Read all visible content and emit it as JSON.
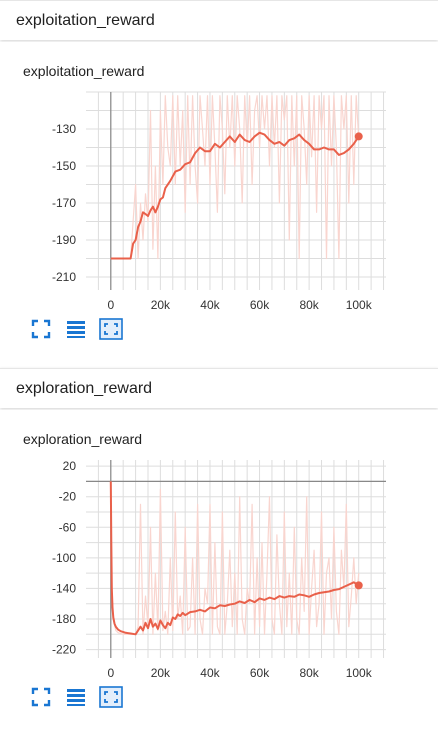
{
  "sections": [
    {
      "header": "exploitation_reward",
      "card_title": "exploitation_reward",
      "toolbar": {
        "fit_icon": "fit-domain-icon",
        "list_icon": "data-list-icon",
        "zoom_icon": "fit-screen-icon"
      }
    },
    {
      "header": "exploration_reward",
      "card_title": "exploration_reward",
      "toolbar": {
        "fit_icon": "fit-domain-icon",
        "list_icon": "data-list-icon",
        "zoom_icon": "fit-screen-icon"
      }
    }
  ],
  "colors": {
    "line": "#e9604a",
    "raw": "#f9d5cf",
    "grid": "#dddddd",
    "icon": "#1976d2"
  },
  "chart_data": [
    {
      "type": "line",
      "title": "exploitation_reward",
      "xlim": [
        -10000,
        111000
      ],
      "ylim": [
        -217,
        -110
      ],
      "x_ticks": [
        0,
        20000,
        40000,
        60000,
        80000,
        100000
      ],
      "x_tick_labels": [
        "0",
        "20k",
        "40k",
        "60k",
        "80k",
        "100k"
      ],
      "y_ticks": [
        -130,
        -150,
        -170,
        -190,
        -210
      ],
      "y_tick_labels": [
        "-130",
        "-150",
        "-170",
        "-190",
        "-210"
      ],
      "grid": true,
      "series": [
        {
          "role": "raw",
          "x": [
            0,
            5000,
            8000,
            9000,
            10000,
            11000,
            12000,
            13000,
            14000,
            15000,
            16000,
            17000,
            18000,
            19000,
            20000,
            21000,
            22000,
            23000,
            24000,
            25000,
            26000,
            27000,
            28000,
            29000,
            30000,
            31000,
            32000,
            33000,
            34000,
            35000,
            36000,
            37000,
            38000,
            39000,
            40000,
            41000,
            42000,
            43000,
            44000,
            45000,
            46000,
            47000,
            48000,
            49000,
            50000,
            51000,
            52000,
            53000,
            54000,
            55000,
            56000,
            57000,
            58000,
            59000,
            60000,
            61000,
            62000,
            63000,
            64000,
            65000,
            66000,
            67000,
            68000,
            69000,
            70000,
            71000,
            72000,
            73000,
            74000,
            75000,
            76000,
            77000,
            78000,
            79000,
            80000,
            81000,
            82000,
            83000,
            84000,
            85000,
            86000,
            87000,
            88000,
            89000,
            90000,
            91000,
            92000,
            93000,
            94000,
            95000,
            96000,
            97000,
            98000,
            99000,
            100000
          ],
          "y": [
            -200,
            -200,
            -200,
            -180,
            -160,
            -200,
            -170,
            -190,
            -165,
            -180,
            -120,
            -195,
            -150,
            -200,
            -120,
            -160,
            -112,
            -140,
            -150,
            -112,
            -160,
            -112,
            -150,
            -120,
            -175,
            -112,
            -160,
            -112,
            -150,
            -170,
            -112,
            -130,
            -150,
            -112,
            -160,
            -112,
            -140,
            -175,
            -112,
            -130,
            -165,
            -112,
            -140,
            -112,
            -150,
            -112,
            -130,
            -170,
            -112,
            -140,
            -112,
            -160,
            -120,
            -112,
            -140,
            -112,
            -130,
            -112,
            -150,
            -112,
            -140,
            -112,
            -170,
            -112,
            -125,
            -112,
            -190,
            -112,
            -150,
            -112,
            -200,
            -112,
            -130,
            -160,
            -112,
            -145,
            -112,
            -175,
            -112,
            -130,
            -112,
            -200,
            -112,
            -150,
            -112,
            -140,
            -200,
            -112,
            -130,
            -112,
            -170,
            -112,
            -160,
            -112,
            -135
          ]
        },
        {
          "role": "smoothed",
          "x": [
            0,
            7000,
            8000,
            9000,
            10000,
            11000,
            12000,
            13000,
            14000,
            15000,
            16000,
            17000,
            18000,
            19000,
            20000,
            21000,
            22000,
            24000,
            26000,
            28000,
            30000,
            32000,
            34000,
            36000,
            38000,
            40000,
            42000,
            44000,
            46000,
            48000,
            50000,
            52000,
            54000,
            56000,
            58000,
            60000,
            62000,
            64000,
            66000,
            68000,
            70000,
            72000,
            74000,
            76000,
            78000,
            80000,
            82000,
            84000,
            86000,
            88000,
            90000,
            92000,
            94000,
            96000,
            98000,
            100000
          ],
          "y": [
            -200,
            -200,
            -200,
            -192,
            -190,
            -183,
            -180,
            -175,
            -176,
            -177,
            -174,
            -172,
            -175,
            -172,
            -168,
            -167,
            -162,
            -158,
            -153,
            -152,
            -149,
            -148,
            -143,
            -140,
            -142,
            -142,
            -138,
            -140,
            -137,
            -134,
            -137,
            -133,
            -136,
            -137,
            -134,
            -132,
            -133,
            -136,
            -138,
            -137,
            -139,
            -136,
            -135,
            -133,
            -136,
            -138,
            -141,
            -141,
            -140,
            -141,
            -141,
            -144,
            -143,
            -141,
            -138,
            -134
          ]
        }
      ]
    },
    {
      "type": "line",
      "title": "exploration_reward",
      "xlim": [
        -10000,
        111000
      ],
      "ylim": [
        -231,
        28
      ],
      "x_ticks": [
        0,
        20000,
        40000,
        60000,
        80000,
        100000
      ],
      "x_tick_labels": [
        "0",
        "20k",
        "40k",
        "60k",
        "80k",
        "100k"
      ],
      "y_ticks": [
        20,
        -20,
        -60,
        -100,
        -140,
        -180,
        -220
      ],
      "y_tick_labels": [
        "20",
        "-20",
        "-60",
        "-100",
        "-140",
        "-180",
        "-220"
      ],
      "grid": true,
      "series": [
        {
          "role": "raw",
          "x": [
            0,
            500,
            1000,
            2000,
            3000,
            5000,
            8000,
            10000,
            11000,
            12000,
            13000,
            14000,
            15000,
            16000,
            17000,
            18000,
            19000,
            20000,
            21000,
            22000,
            23000,
            24000,
            25000,
            26000,
            27000,
            28000,
            29000,
            30000,
            31000,
            32000,
            33000,
            34000,
            35000,
            36000,
            37000,
            38000,
            39000,
            40000,
            41000,
            42000,
            43000,
            44000,
            45000,
            46000,
            47000,
            48000,
            49000,
            50000,
            51000,
            52000,
            53000,
            54000,
            55000,
            56000,
            57000,
            58000,
            59000,
            60000,
            61000,
            62000,
            63000,
            64000,
            65000,
            66000,
            67000,
            68000,
            69000,
            70000,
            71000,
            72000,
            73000,
            74000,
            75000,
            76000,
            77000,
            78000,
            79000,
            80000,
            81000,
            82000,
            83000,
            84000,
            85000,
            86000,
            87000,
            88000,
            89000,
            90000,
            91000,
            92000,
            93000,
            94000,
            95000,
            96000,
            97000,
            98000,
            99000,
            100000
          ],
          "y": [
            0,
            -150,
            -180,
            -195,
            -198,
            -200,
            -200,
            -200,
            -190,
            -30,
            -200,
            -150,
            -190,
            -60,
            -200,
            -120,
            -195,
            -10,
            -195,
            -170,
            -200,
            -100,
            -195,
            -40,
            -180,
            -150,
            -200,
            -60,
            -195,
            -190,
            -100,
            -200,
            -30,
            -180,
            -200,
            -140,
            -160,
            -30,
            -200,
            -80,
            -190,
            -200,
            -40,
            -200,
            -160,
            -90,
            -190,
            -120,
            -200,
            -20,
            -180,
            -200,
            -140,
            -160,
            -30,
            -200,
            -100,
            -190,
            -80,
            -200,
            -120,
            -20,
            -180,
            -200,
            -70,
            -160,
            -200,
            -40,
            -190,
            -120,
            -200,
            -60,
            -180,
            -200,
            -100,
            -170,
            -20,
            -200,
            -140,
            -90,
            -190,
            -160,
            -40,
            -200,
            -120,
            -100,
            -180,
            -60,
            -170,
            -200,
            -90,
            -140,
            -30,
            -190,
            -150,
            -100,
            -160,
            -120
          ]
        },
        {
          "role": "smoothed",
          "x": [
            0,
            200,
            400,
            700,
            1000,
            1500,
            2000,
            3000,
            4000,
            6000,
            8000,
            10000,
            11000,
            12000,
            13000,
            14000,
            15000,
            16000,
            17000,
            18000,
            19000,
            20000,
            21000,
            22000,
            23000,
            24000,
            25000,
            26000,
            27000,
            28000,
            29000,
            30000,
            32000,
            34000,
            36000,
            38000,
            40000,
            42000,
            44000,
            46000,
            48000,
            50000,
            52000,
            54000,
            56000,
            58000,
            60000,
            62000,
            64000,
            66000,
            68000,
            70000,
            72000,
            74000,
            76000,
            78000,
            80000,
            82000,
            84000,
            86000,
            88000,
            90000,
            92000,
            94000,
            96000,
            98000,
            100000
          ],
          "y": [
            0,
            -80,
            -140,
            -165,
            -178,
            -186,
            -190,
            -194,
            -196,
            -198,
            -199,
            -200,
            -195,
            -190,
            -195,
            -185,
            -192,
            -180,
            -190,
            -186,
            -193,
            -182,
            -188,
            -192,
            -185,
            -188,
            -178,
            -180,
            -174,
            -176,
            -172,
            -175,
            -171,
            -170,
            -168,
            -170,
            -165,
            -166,
            -162,
            -163,
            -161,
            -160,
            -157,
            -159,
            -155,
            -158,
            -153,
            -155,
            -152,
            -154,
            -150,
            -152,
            -150,
            -151,
            -148,
            -149,
            -151,
            -148,
            -146,
            -145,
            -144,
            -142,
            -141,
            -138,
            -135,
            -132,
            -136
          ]
        }
      ]
    }
  ]
}
